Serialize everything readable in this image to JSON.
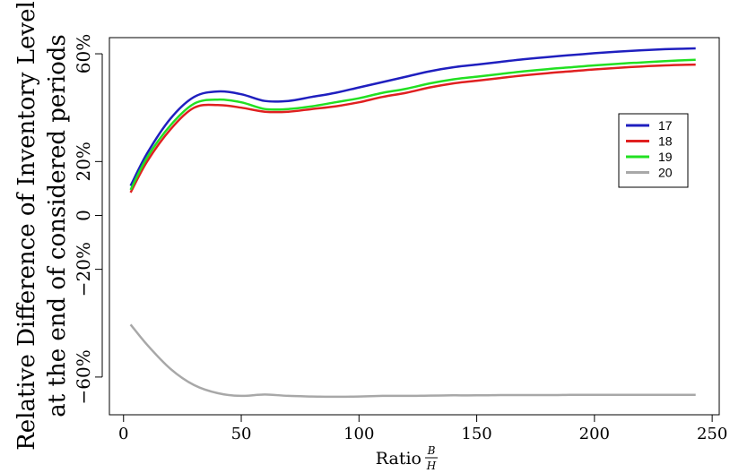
{
  "chart_data": {
    "type": "line",
    "xlabel": "Ratio",
    "xlabel_fraction": {
      "numerator": "B",
      "denominator": "H"
    },
    "ylabel_line1": "Relative Difference of Inventory Level",
    "ylabel_line2": "at the end of considered periods",
    "xlim": [
      -6,
      253
    ],
    "ylim": [
      -74,
      66
    ],
    "x_ticks": [
      0,
      50,
      100,
      150,
      200,
      250
    ],
    "x_tick_labels": [
      "0",
      "50",
      "100",
      "150",
      "200",
      "250"
    ],
    "y_ticks": [
      60,
      20,
      0,
      -20,
      -60
    ],
    "y_tick_labels": [
      "60%",
      "20%",
      "0",
      "−20%",
      "−60%"
    ],
    "grid": false,
    "legend_position": "right",
    "x": [
      3,
      10,
      20,
      30,
      40,
      50,
      60,
      70,
      80,
      90,
      100,
      110,
      120,
      130,
      140,
      150,
      160,
      170,
      180,
      190,
      200,
      210,
      220,
      230,
      243
    ],
    "series": [
      {
        "name": "17",
        "color": "#1f1fbf",
        "values": [
          11,
          23,
          36,
          44,
          46,
          45,
          42.5,
          42.5,
          44,
          45.5,
          47.5,
          49.5,
          51.5,
          53.5,
          55,
          56,
          57,
          58,
          58.8,
          59.5,
          60.2,
          60.8,
          61.3,
          61.7,
          62
        ]
      },
      {
        "name": "18",
        "color": "#e02020",
        "values": [
          8.5,
          20,
          32,
          40,
          41,
          40,
          38.5,
          38.5,
          39.5,
          40.5,
          42,
          44,
          45.5,
          47.5,
          49,
          50,
          51,
          52,
          52.8,
          53.5,
          54.2,
          54.8,
          55.3,
          55.7,
          56
        ]
      },
      {
        "name": "19",
        "color": "#22e022",
        "values": [
          9.5,
          21.5,
          33.5,
          41.5,
          43,
          42,
          39.5,
          39.5,
          40.5,
          42,
          43.5,
          45.5,
          47,
          49,
          50.5,
          51.5,
          52.5,
          53.5,
          54.3,
          55,
          55.7,
          56.3,
          56.8,
          57.3,
          57.8
        ]
      },
      {
        "name": "20",
        "color": "#a8a8a8",
        "values": [
          -40.5,
          -48,
          -57,
          -63,
          -66,
          -67,
          -66.5,
          -67,
          -67.2,
          -67.3,
          -67.2,
          -67,
          -67,
          -66.9,
          -66.8,
          -66.8,
          -66.7,
          -66.7,
          -66.7,
          -66.6,
          -66.6,
          -66.6,
          -66.6,
          -66.6,
          -66.6
        ]
      }
    ]
  }
}
